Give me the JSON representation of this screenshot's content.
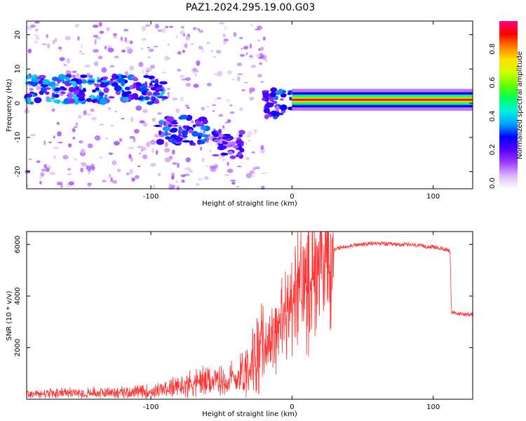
{
  "figure": {
    "title": "PAZ1.2024.295.19.00.G03"
  },
  "chart_data": [
    {
      "type": "heatmap",
      "xlabel": "Height of straight line (km)",
      "ylabel": "Frequency (Hz)",
      "xlim": [
        -188,
        128
      ],
      "ylim": [
        -25,
        24
      ],
      "xticks": [
        -100,
        0,
        100
      ],
      "yticks": [
        -20,
        -10,
        0,
        10,
        20
      ],
      "colorbar": {
        "label": "Normalized spectral amplitude",
        "range": [
          0,
          1
        ],
        "ticks": [
          "0.0",
          "0.2",
          "0.4",
          "0.6",
          "0.8"
        ],
        "colors": [
          "#ffffff",
          "#d9b8f5",
          "#a040ff",
          "#5500ff",
          "#0000ff",
          "#00a0ff",
          "#00f0e0",
          "#00ff60",
          "#60ff00",
          "#d0ff00",
          "#ffe000",
          "#ff8000",
          "#ff0000",
          "#ff0080"
        ]
      },
      "ridges": [
        {
          "name": "",
          "x_range": [
            -188,
            -130
          ],
          "freq": 4,
          "amplitude": 0.35
        },
        {
          "name": "",
          "x_range": [
            -130,
            -90
          ],
          "freq": 4,
          "amplitude": 0.35
        },
        {
          "name": "",
          "x_range": [
            -95,
            -60
          ],
          "freq": -8,
          "amplitude": 0.3
        },
        {
          "name": "",
          "x_range": [
            -55,
            -35
          ],
          "freq": -12,
          "amplitude": 0.25
        },
        {
          "name": "",
          "x_range": [
            -20,
            0
          ],
          "freq": 0,
          "amplitude": 0.3
        },
        {
          "name": "",
          "x_range": [
            0,
            128
          ],
          "freq": 1,
          "amplitude": 0.95
        }
      ]
    },
    {
      "type": "line",
      "xlabel": "Height of straight line (km)",
      "ylabel": "SNR (10 * v/v)",
      "xlim": [
        -188,
        128
      ],
      "ylim": [
        0,
        6500
      ],
      "xticks": [
        -100,
        0,
        100
      ],
      "yticks": [
        2000,
        4000,
        6000
      ],
      "series": [
        {
          "name": "",
          "color": "#ff3333",
          "x": [
            -188,
            -170,
            -150,
            -130,
            -110,
            -100,
            -90,
            -80,
            -70,
            -60,
            -50,
            -40,
            -30,
            -25,
            -20,
            -15,
            -10,
            -5,
            0,
            5,
            10,
            15,
            20,
            25,
            30,
            40,
            50,
            60,
            70,
            80,
            90,
            100,
            110,
            112,
            113,
            120,
            128
          ],
          "y": [
            200,
            220,
            250,
            260,
            280,
            300,
            380,
            480,
            650,
            700,
            700,
            800,
            1400,
            1800,
            2000,
            2400,
            2900,
            3200,
            3800,
            4300,
            4700,
            5000,
            5300,
            5600,
            5800,
            5950,
            6000,
            6050,
            6000,
            6000,
            5950,
            5900,
            5800,
            5750,
            3350,
            3300,
            3300
          ]
        }
      ]
    }
  ]
}
